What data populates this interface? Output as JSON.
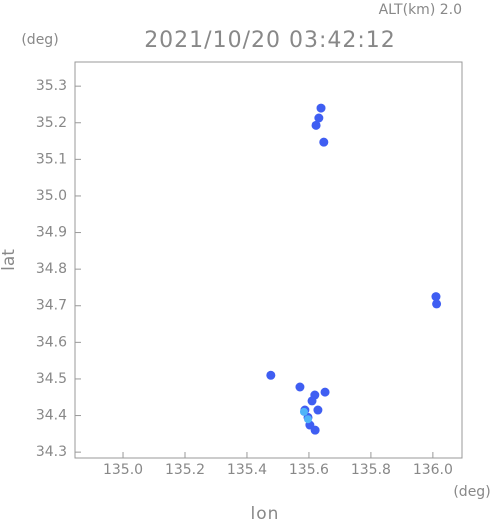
{
  "chart_data": {
    "type": "scatter",
    "title": "2021/10/20 03:42:12",
    "annotation": "ALT(km) 2.0",
    "y_unit": "(deg)",
    "x_unit": "(deg)",
    "x_label": "lon",
    "y_label": "lat",
    "xlim": [
      134.845,
      136.094
    ],
    "ylim": [
      34.284,
      35.366
    ],
    "xticks": [
      {
        "value": 135,
        "label": "135.0"
      },
      135.2,
      135.4,
      135.6,
      135.8,
      {
        "value": 136,
        "label": "136.0"
      }
    ],
    "yticks": [
      34.3,
      34.4,
      34.5,
      34.6,
      34.7,
      34.8,
      34.9,
      {
        "value": 35,
        "label": "35.0"
      },
      35.1,
      35.2,
      35.3
    ],
    "series": [
      {
        "color": "#3f5ef2",
        "x": [
          135.639,
          135.632,
          135.623,
          135.648,
          136.01,
          136.012,
          135.477,
          135.571,
          135.619,
          135.652,
          135.587,
          135.603,
          135.629,
          135.61,
          135.597,
          135.62
        ],
        "y": [
          35.24,
          35.213,
          35.193,
          35.147,
          34.725,
          34.705,
          34.51,
          34.478,
          34.456,
          34.464,
          34.415,
          34.374,
          34.415,
          34.44,
          34.395,
          34.36
        ]
      },
      {
        "color": "#4fb4f8",
        "x": [
          135.584,
          135.597
        ],
        "y": [
          34.41,
          34.39
        ]
      }
    ]
  }
}
